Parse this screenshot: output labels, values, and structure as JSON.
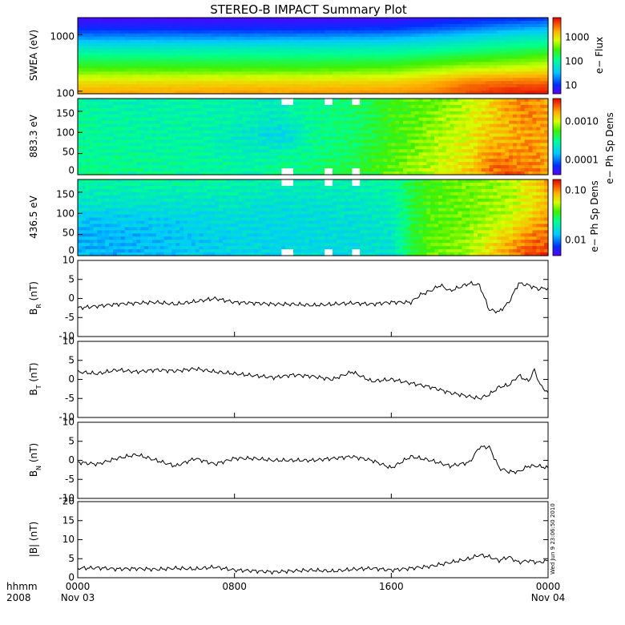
{
  "title": "STEREO-B IMPACT Summary Plot",
  "timestamp": "Wed Jun  9 23:06:50 2010",
  "x_axis": {
    "label_top": "hhmm",
    "label_bottom": "2008",
    "ticks": [
      {
        "t": 0,
        "top": "0000",
        "bottom": "Nov 03"
      },
      {
        "t": 8,
        "top": "0800",
        "bottom": ""
      },
      {
        "t": 16,
        "top": "1600",
        "bottom": ""
      },
      {
        "t": 24,
        "top": "0000",
        "bottom": "Nov 04"
      }
    ]
  },
  "colors": {
    "line": "#000000",
    "background": "#ffffff",
    "gap": "#ffffff"
  },
  "chart_data": [
    {
      "type": "heatmap",
      "name": "swea",
      "ylabel": "SWEA (eV)",
      "yscale": "log",
      "ylim": [
        90,
        2000
      ],
      "yticks": [
        "100",
        "1000"
      ],
      "colorbar": {
        "label": "e− Flux",
        "scale": "log",
        "ticks": [
          "10",
          "100",
          "1000"
        ]
      },
      "x": [
        0,
        4,
        8,
        12,
        16,
        18,
        20,
        22,
        24
      ],
      "y": [
        100,
        150,
        250,
        400,
        600,
        900,
        1300,
        2000
      ],
      "values": [
        [
          0.82,
          0.82,
          0.83,
          0.83,
          0.84,
          0.86,
          0.92,
          0.96,
          0.97
        ],
        [
          0.74,
          0.74,
          0.75,
          0.75,
          0.76,
          0.8,
          0.86,
          0.88,
          0.88
        ],
        [
          0.58,
          0.58,
          0.58,
          0.58,
          0.6,
          0.64,
          0.68,
          0.7,
          0.72
        ],
        [
          0.47,
          0.47,
          0.47,
          0.47,
          0.48,
          0.51,
          0.54,
          0.56,
          0.6
        ],
        [
          0.36,
          0.36,
          0.37,
          0.37,
          0.38,
          0.4,
          0.43,
          0.46,
          0.48
        ],
        [
          0.22,
          0.22,
          0.22,
          0.23,
          0.25,
          0.28,
          0.32,
          0.36,
          0.38
        ],
        [
          0.1,
          0.1,
          0.1,
          0.1,
          0.12,
          0.15,
          0.19,
          0.23,
          0.26
        ],
        [
          0.02,
          0.02,
          0.02,
          0.02,
          0.03,
          0.05,
          0.07,
          0.1,
          0.12
        ]
      ]
    },
    {
      "type": "heatmap",
      "name": "pad883",
      "ylabel": "883.3 eV",
      "ylim": [
        0,
        180
      ],
      "yticks": [
        "0",
        "50",
        "100",
        "150"
      ],
      "colorbar": {
        "label": "e− Ph Sp Dens",
        "scale": "log",
        "ticks": [
          "0.0001",
          "0.0010"
        ]
      },
      "x": [
        0,
        3,
        6,
        9,
        10,
        11,
        12,
        14,
        16,
        18,
        20,
        21,
        22,
        23,
        24
      ],
      "y": [
        10,
        45,
        90,
        135,
        170
      ],
      "values": [
        [
          0.46,
          0.44,
          0.44,
          0.42,
          0.45,
          0.47,
          0.47,
          0.52,
          0.6,
          0.68,
          0.78,
          0.88,
          0.9,
          0.88,
          0.84
        ],
        [
          0.45,
          0.44,
          0.43,
          0.4,
          0.42,
          0.44,
          0.46,
          0.5,
          0.58,
          0.66,
          0.74,
          0.84,
          0.86,
          0.86,
          0.82
        ],
        [
          0.44,
          0.42,
          0.42,
          0.36,
          0.32,
          0.34,
          0.44,
          0.48,
          0.56,
          0.64,
          0.72,
          0.78,
          0.8,
          0.84,
          0.82
        ],
        [
          0.44,
          0.42,
          0.42,
          0.4,
          0.38,
          0.4,
          0.45,
          0.48,
          0.56,
          0.62,
          0.7,
          0.76,
          0.82,
          0.86,
          0.84
        ],
        [
          0.42,
          0.4,
          0.42,
          0.4,
          0.38,
          0.42,
          0.46,
          0.48,
          0.56,
          0.6,
          0.68,
          0.76,
          0.84,
          0.86,
          0.82
        ]
      ],
      "gaps": [
        [
          10.5,
          11.1
        ],
        [
          12.6,
          13.0
        ],
        [
          14.1,
          14.4
        ]
      ]
    },
    {
      "type": "heatmap",
      "name": "pad436",
      "ylabel": "436.5 eV",
      "ylim": [
        0,
        180
      ],
      "yticks": [
        "0",
        "50",
        "100",
        "150"
      ],
      "colorbar": {
        "label": "e− Ph Sp Dens",
        "scale": "log",
        "ticks": [
          "0.01",
          "0.10"
        ]
      },
      "x": [
        0,
        2,
        4,
        6,
        8,
        10,
        12,
        14,
        16,
        17,
        18,
        20,
        22,
        23,
        24
      ],
      "y": [
        10,
        45,
        90,
        135,
        170
      ],
      "values": [
        [
          0.26,
          0.26,
          0.28,
          0.3,
          0.32,
          0.32,
          0.33,
          0.33,
          0.36,
          0.52,
          0.6,
          0.66,
          0.84,
          0.92,
          0.94
        ],
        [
          0.26,
          0.26,
          0.28,
          0.3,
          0.32,
          0.32,
          0.33,
          0.34,
          0.37,
          0.52,
          0.6,
          0.64,
          0.78,
          0.86,
          0.9
        ],
        [
          0.3,
          0.3,
          0.31,
          0.32,
          0.34,
          0.33,
          0.34,
          0.35,
          0.38,
          0.52,
          0.58,
          0.62,
          0.68,
          0.76,
          0.84
        ],
        [
          0.38,
          0.38,
          0.38,
          0.38,
          0.38,
          0.36,
          0.37,
          0.38,
          0.4,
          0.52,
          0.58,
          0.62,
          0.66,
          0.72,
          0.8
        ],
        [
          0.42,
          0.42,
          0.42,
          0.42,
          0.42,
          0.4,
          0.4,
          0.4,
          0.42,
          0.52,
          0.58,
          0.62,
          0.66,
          0.74,
          0.82
        ]
      ],
      "gaps": [
        [
          10.5,
          11.1
        ],
        [
          12.6,
          13.0
        ],
        [
          14.1,
          14.4
        ]
      ]
    },
    {
      "type": "line",
      "name": "br",
      "ylabel_main": "B",
      "ylabel_sub": "R",
      "ylabel_unit": " (nT)",
      "ylim": [
        -10,
        10
      ],
      "yticks": [
        "-10",
        "-5",
        "0",
        "5",
        "10"
      ],
      "x": [
        0,
        1,
        2,
        3,
        4,
        5,
        6,
        7,
        8,
        9,
        10,
        11,
        12,
        13,
        14,
        15,
        16,
        17,
        17.5,
        18,
        18.5,
        19,
        19.5,
        20,
        20.5,
        21,
        21.5,
        22,
        22.5,
        23,
        23.5,
        24
      ],
      "y": [
        -2.5,
        -2,
        -1.5,
        -1.2,
        -1,
        -1.5,
        -0.8,
        0,
        -1,
        -1.2,
        -1.5,
        -1.5,
        -1.8,
        -1.5,
        -1.2,
        -1.5,
        -1,
        -1,
        1,
        2,
        3.5,
        2,
        3,
        4,
        3.5,
        -3,
        -3.5,
        -1,
        4,
        3.5,
        2.5,
        2.8
      ]
    },
    {
      "type": "line",
      "name": "bt",
      "ylabel_main": "B",
      "ylabel_sub": "T",
      "ylabel_unit": " (nT)",
      "ylim": [
        -10,
        10
      ],
      "yticks": [
        "-10",
        "-5",
        "0",
        "5",
        "10"
      ],
      "x": [
        0,
        1,
        2,
        3,
        4,
        5,
        6,
        7,
        8,
        9,
        10,
        11,
        12,
        13,
        14,
        15,
        16,
        17,
        18,
        19,
        20,
        20.5,
        21,
        21.5,
        22,
        22.5,
        23,
        23.3,
        23.6,
        24
      ],
      "y": [
        2,
        1.5,
        2.5,
        2,
        2.5,
        2.2,
        2.8,
        2,
        1.5,
        1,
        0.5,
        1.2,
        0.8,
        0,
        2,
        -0.5,
        0,
        -1,
        -2,
        -3.5,
        -4.5,
        -5,
        -4,
        -2,
        -1.5,
        1,
        -0.5,
        2.5,
        -1.5,
        -3.5
      ]
    },
    {
      "type": "line",
      "name": "bn",
      "ylabel_main": "B",
      "ylabel_sub": "N",
      "ylabel_unit": " (nT)",
      "ylim": [
        -10,
        10
      ],
      "yticks": [
        "-10",
        "-5",
        "0",
        "5",
        "10"
      ],
      "x": [
        0,
        1,
        2,
        3,
        4,
        5,
        6,
        7,
        8,
        9,
        10,
        11,
        12,
        13,
        14,
        15,
        16,
        17,
        18,
        19,
        20,
        20.5,
        21,
        21.5,
        22,
        22.5,
        23,
        23.5,
        24
      ],
      "y": [
        -0.5,
        -1,
        0.5,
        1.5,
        0,
        -1.5,
        0.5,
        -1,
        0.5,
        0.5,
        0,
        0,
        0,
        0.5,
        1,
        0,
        -2,
        1,
        0,
        -1.5,
        -0.5,
        3.5,
        3.5,
        -2,
        -3,
        -3,
        -1.5,
        -1.5,
        -2
      ]
    },
    {
      "type": "line",
      "name": "bmag",
      "ylabel_main": "|B| (nT)",
      "ylabel_sub": "",
      "ylabel_unit": "",
      "ylim": [
        0,
        20
      ],
      "yticks": [
        "0",
        "5",
        "10",
        "15",
        "20"
      ],
      "x": [
        0,
        1,
        2,
        3,
        4,
        5,
        6,
        7,
        8,
        9,
        10,
        11,
        12,
        13,
        14,
        15,
        16,
        17,
        18,
        19,
        20,
        20.5,
        21,
        21.5,
        22,
        22.5,
        23,
        23.5,
        24
      ],
      "y": [
        2.5,
        2.6,
        2.3,
        2.4,
        2.2,
        2.5,
        2.3,
        2.8,
        2,
        1.8,
        1.5,
        1.8,
        2,
        1.7,
        2.2,
        2.5,
        2,
        2.5,
        3,
        4,
        5,
        6,
        5.5,
        4.5,
        5.5,
        4,
        4.5,
        4,
        4.5
      ]
    }
  ]
}
